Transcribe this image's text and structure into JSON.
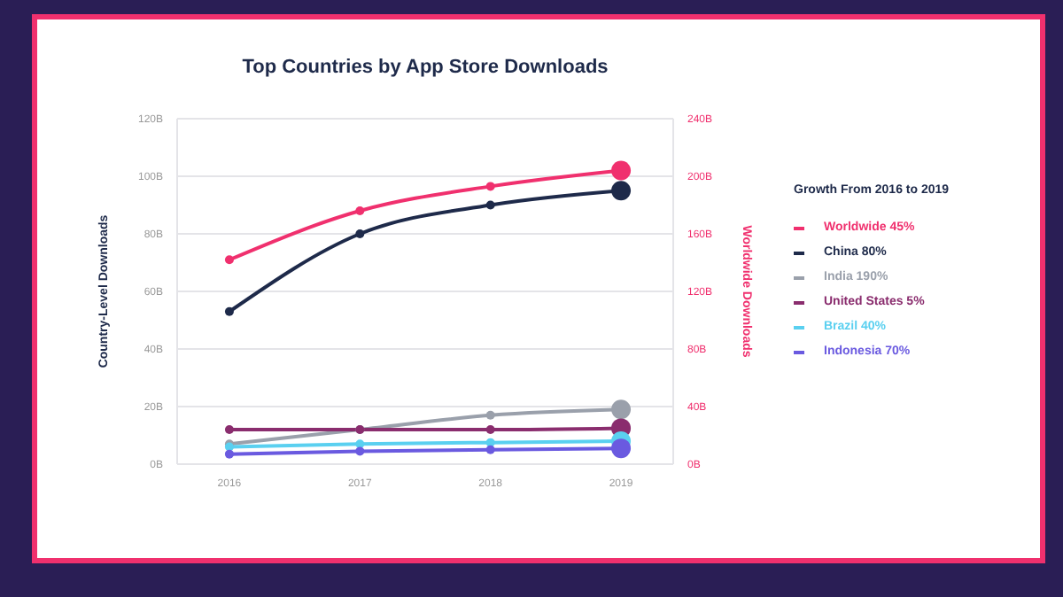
{
  "chart_data": {
    "type": "line",
    "title": "Top Countries by App Store Downloads",
    "ylabel": "Country-Level Downloads",
    "y2label": "Worldwide Downloads",
    "legend_title": "Growth From 2016 to 2019",
    "categories": [
      "2016",
      "2017",
      "2018",
      "2019"
    ],
    "series": [
      {
        "name": "Worldwide 45%",
        "color": "#f0306e",
        "axis": "y2",
        "values": [
          142,
          176,
          193,
          204
        ]
      },
      {
        "name": "China 80%",
        "color": "#1e2a4a",
        "values": [
          53,
          80,
          90,
          95
        ]
      },
      {
        "name": "India 190%",
        "color": "#9aa0ab",
        "values": [
          7,
          12,
          17,
          19
        ]
      },
      {
        "name": "United States 5%",
        "color": "#8a2d6e",
        "values": [
          12,
          12,
          12,
          12.5
        ]
      },
      {
        "name": "Brazil 40%",
        "color": "#5ad0f0",
        "values": [
          6,
          7,
          7.5,
          8
        ]
      },
      {
        "name": "Indonesia 70%",
        "color": "#6a5ae0",
        "values": [
          3.5,
          4.5,
          5,
          5.5
        ]
      }
    ],
    "ylim": [
      0,
      120
    ],
    "yticks": [
      {
        "value": 0,
        "label": "0B"
      },
      {
        "value": 20,
        "label": "20B"
      },
      {
        "value": 40,
        "label": "40B"
      },
      {
        "value": 60,
        "label": "60B"
      },
      {
        "value": 80,
        "label": "80B"
      },
      {
        "value": 100,
        "label": "100B"
      },
      {
        "value": 120,
        "label": "120B"
      }
    ],
    "y2lim": [
      0,
      240
    ],
    "y2ticks": [
      {
        "value": 0,
        "label": "0B"
      },
      {
        "value": 40,
        "label": "40B"
      },
      {
        "value": 80,
        "label": "80B"
      },
      {
        "value": 120,
        "label": "120B"
      },
      {
        "value": 160,
        "label": "160B"
      },
      {
        "value": 200,
        "label": "200B"
      },
      {
        "value": 240,
        "label": "240B"
      }
    ],
    "grid": "y",
    "legend": "right",
    "marker": "circle",
    "line_style": "solid"
  }
}
